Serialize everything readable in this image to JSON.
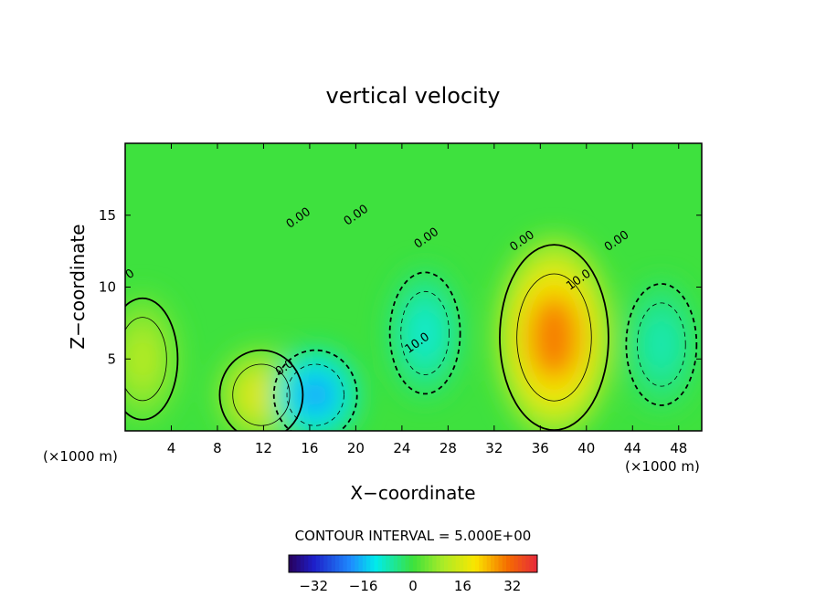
{
  "chart_data": {
    "type": "heatmap",
    "title": "vertical velocity",
    "xlabel": "X−coordinate",
    "ylabel": "Z−coordinate",
    "x_unit_left": "(×1000 m)",
    "x_unit_right": "(×1000 m)",
    "xlim": [
      0,
      50
    ],
    "ylim": [
      0,
      20
    ],
    "x_ticks": [
      4,
      8,
      12,
      16,
      20,
      24,
      28,
      32,
      36,
      40,
      44,
      48
    ],
    "y_ticks": [
      5,
      10,
      15
    ],
    "contour_interval_text": "CONTOUR INTERVAL = 5.000E+00",
    "colorbar": {
      "range": [
        -40,
        40
      ],
      "ticks": [
        -32,
        -16,
        0,
        16,
        32
      ],
      "tick_labels": [
        "−32",
        "−16",
        "0",
        "16",
        "32"
      ]
    },
    "contour_labels": [
      {
        "text": "0.00",
        "x": 15.2,
        "z": 14.6
      },
      {
        "text": "0.00",
        "x": 20.2,
        "z": 14.8
      },
      {
        "text": "0.00",
        "x": 26.3,
        "z": 13.2
      },
      {
        "text": "0.00",
        "x": 34.6,
        "z": 13.0
      },
      {
        "text": "0.00",
        "x": 42.8,
        "z": 13.0
      },
      {
        "text": "10.0",
        "x": 39.5,
        "z": 10.3
      },
      {
        "text": "10.0",
        "x": 25.5,
        "z": 5.9
      },
      {
        "text": "0.0",
        "x": 14.0,
        "z": 4.2
      },
      {
        "text": "0",
        "x": 0.6,
        "z": 10.7
      }
    ],
    "features": [
      {
        "kind": "max",
        "x": 37.2,
        "z": 6.5,
        "value": 29
      },
      {
        "kind": "max",
        "x": 11.8,
        "z": 2.5,
        "value": 17
      },
      {
        "kind": "max",
        "x": 1.5,
        "z": 5.0,
        "value": 11
      },
      {
        "kind": "min",
        "x": 16.5,
        "z": 2.5,
        "value": -18
      },
      {
        "kind": "min",
        "x": 26.0,
        "z": 6.8,
        "value": -10
      },
      {
        "kind": "min",
        "x": 46.5,
        "z": 6.0,
        "value": -8
      }
    ]
  }
}
